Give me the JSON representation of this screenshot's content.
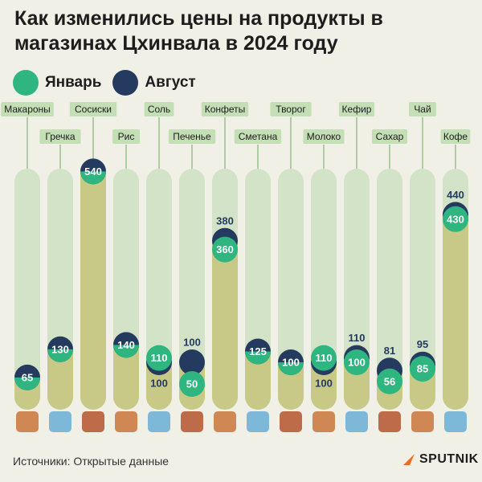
{
  "title": "Как изменились цены на продукты в магазинах Цхинвала в 2024 году",
  "legend": {
    "january": {
      "label": "Январь",
      "color": "#2fb57f"
    },
    "august": {
      "label": "Август",
      "color": "#243a5e"
    }
  },
  "colors": {
    "bar_green": "#b9d8ad",
    "bar_olive": "#c9c987",
    "label_bg": "#c4dfb5",
    "background": "#f1f0e6"
  },
  "chart_data": {
    "type": "bar",
    "categories": [
      "Макароны",
      "Гречка",
      "Сосиски",
      "Рис",
      "Соль",
      "Печенье",
      "Конфеты",
      "Сметана",
      "Творог",
      "Молоко",
      "Кефир",
      "Сахар",
      "Чай",
      "Кофе"
    ],
    "series": [
      {
        "name": "Январь",
        "values": [
          65,
          130,
          540,
          140,
          110,
          50,
          360,
          125,
          100,
          110,
          100,
          56,
          85,
          430
        ]
      },
      {
        "name": "Август",
        "values": [
          65,
          130,
          540,
          140,
          100,
          100,
          380,
          125,
          100,
          100,
          110,
          81,
          95,
          440
        ]
      }
    ]
  },
  "footer": {
    "source": "Источники: Открытые данные",
    "brand": "SPUTNIK"
  }
}
